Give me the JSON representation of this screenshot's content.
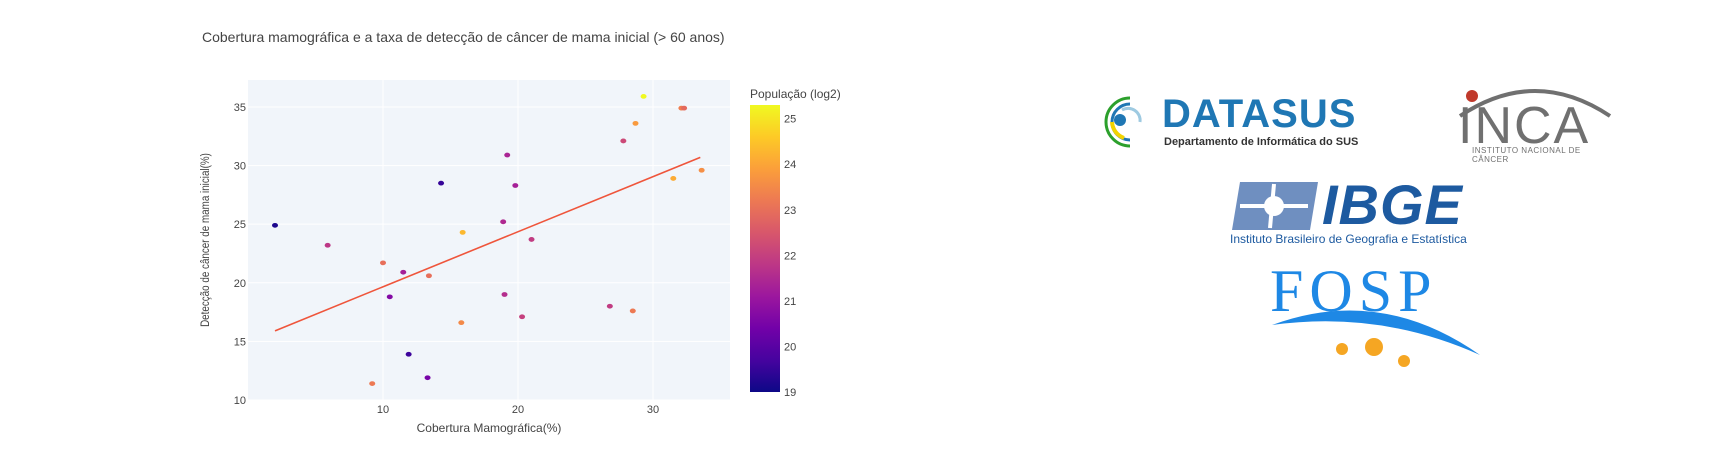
{
  "chart_data": {
    "type": "scatter",
    "title": "Cobertura mamográfica e a taxa de detecção de câncer de mama inicial (> 60 anos)",
    "xlabel": "Cobertura Mamográfica(%)",
    "ylabel": "Detecção de câncer de mama inicial(%)",
    "xlim": [
      0,
      35.7
    ],
    "ylim": [
      10,
      37.3
    ],
    "x_ticks": [
      10,
      20,
      30
    ],
    "y_ticks": [
      10,
      15,
      20,
      25,
      30,
      35
    ],
    "grid": true,
    "colorbar": {
      "title": "População (log2)",
      "range": [
        19,
        25.3
      ],
      "ticks": [
        19,
        20,
        21,
        22,
        23,
        24,
        25
      ],
      "colorscale": [
        "#0d0887",
        "#46039f",
        "#7201a8",
        "#9c179e",
        "#bd3786",
        "#d8576b",
        "#ed7953",
        "#fb9f3a",
        "#fdca26",
        "#f0f921"
      ]
    },
    "trendline": {
      "x": [
        2.0,
        33.5
      ],
      "y": [
        15.9,
        30.7
      ],
      "color": "#ef553b"
    },
    "points": [
      {
        "x": 2.0,
        "y": 24.9,
        "c": 19.2
      },
      {
        "x": 5.9,
        "y": 23.2,
        "c": 21.8
      },
      {
        "x": 9.2,
        "y": 11.4,
        "c": 23.2
      },
      {
        "x": 10.0,
        "y": 21.7,
        "c": 23.0
      },
      {
        "x": 10.5,
        "y": 18.8,
        "c": 20.7
      },
      {
        "x": 11.5,
        "y": 20.9,
        "c": 21.3
      },
      {
        "x": 11.9,
        "y": 13.9,
        "c": 19.6
      },
      {
        "x": 13.3,
        "y": 11.9,
        "c": 20.5
      },
      {
        "x": 13.4,
        "y": 20.6,
        "c": 23.0
      },
      {
        "x": 14.3,
        "y": 28.5,
        "c": 19.5
      },
      {
        "x": 15.8,
        "y": 16.6,
        "c": 23.5
      },
      {
        "x": 15.9,
        "y": 24.3,
        "c": 24.3
      },
      {
        "x": 18.9,
        "y": 25.2,
        "c": 21.5
      },
      {
        "x": 19.0,
        "y": 19.0,
        "c": 21.6
      },
      {
        "x": 19.2,
        "y": 30.9,
        "c": 21.4
      },
      {
        "x": 19.8,
        "y": 28.3,
        "c": 21.3
      },
      {
        "x": 20.3,
        "y": 17.1,
        "c": 22.0
      },
      {
        "x": 21.0,
        "y": 23.7,
        "c": 21.9
      },
      {
        "x": 26.8,
        "y": 18.0,
        "c": 21.9
      },
      {
        "x": 27.8,
        "y": 32.1,
        "c": 22.2
      },
      {
        "x": 28.5,
        "y": 17.6,
        "c": 23.2
      },
      {
        "x": 28.7,
        "y": 33.6,
        "c": 23.8
      },
      {
        "x": 29.3,
        "y": 35.9,
        "c": 25.3
      },
      {
        "x": 31.5,
        "y": 28.9,
        "c": 24.1
      },
      {
        "x": 32.1,
        "y": 34.9,
        "c": 23.3
      },
      {
        "x": 32.3,
        "y": 34.9,
        "c": 22.9
      },
      {
        "x": 33.6,
        "y": 29.6,
        "c": 23.6
      }
    ]
  },
  "logos": {
    "datasus": {
      "name": "DATASUS",
      "subtitle": "Departamento de Informática do SUS"
    },
    "inca": {
      "name": "INCA",
      "subtitle": "INSTITUTO NACIONAL DE CÂNCER"
    },
    "ibge": {
      "name": "IBGE",
      "subtitle": "Instituto Brasileiro de Geografia e Estatística"
    },
    "fosp": {
      "name": "FOSP"
    }
  }
}
